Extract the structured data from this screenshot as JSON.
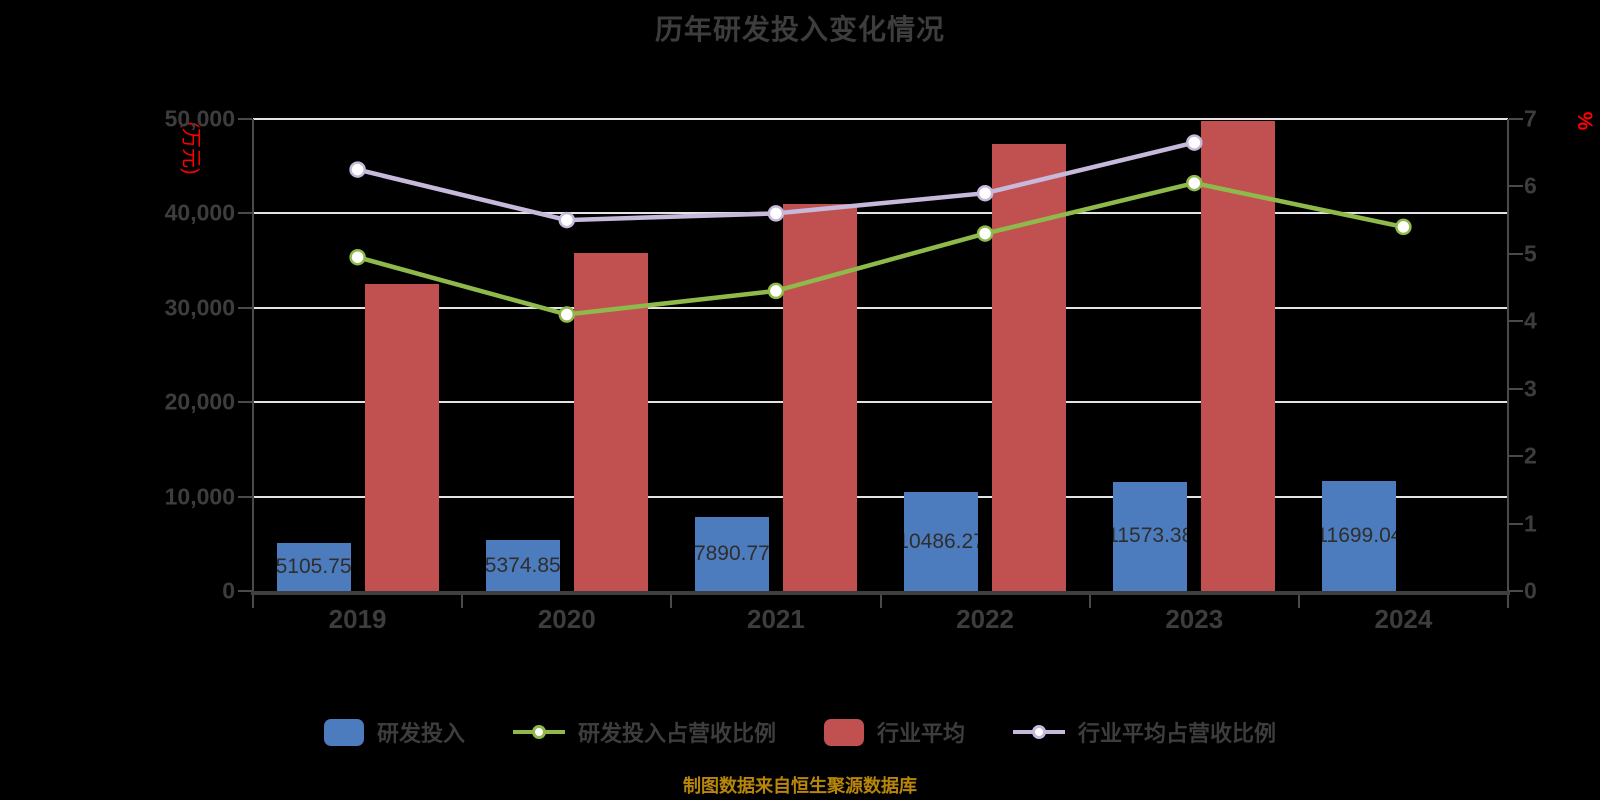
{
  "page": {
    "background_color": "#000000"
  },
  "chart_data": {
    "type": "combo-bar-line",
    "title": "历年研发投入变化情况",
    "source_note": "制图数据来自恒生聚源数据库",
    "categories": [
      "2019",
      "2020",
      "2021",
      "2022",
      "2023",
      "2024"
    ],
    "left_axis": {
      "unit": "(万元)",
      "unit_color": "#FF0000",
      "min": 0,
      "max": 50000,
      "tick_values": [
        0,
        10000,
        20000,
        30000,
        40000,
        50000
      ],
      "tick_labels": [
        "0",
        "10,000",
        "20,000",
        "30,000",
        "40,000",
        "50,000"
      ],
      "grid": true
    },
    "right_axis": {
      "unit": "%",
      "unit_color": "#FF0000",
      "min": 0,
      "max": 7,
      "tick_values": [
        0,
        1,
        2,
        3,
        4,
        5,
        6,
        7
      ],
      "tick_labels": [
        "0",
        "1",
        "2",
        "3",
        "4",
        "5",
        "6",
        "7"
      ],
      "grid": false
    },
    "series": [
      {
        "name": "研发投入",
        "type": "bar",
        "axis": "left",
        "color": "#4C7CBE",
        "values": [
          5105.75,
          5374.85,
          7890.77,
          10486.27,
          11573.38,
          11699.04
        ],
        "value_labels": [
          "5105.75",
          "5374.85",
          "7890.77",
          "10486.27",
          "11573.38",
          "11699.04"
        ]
      },
      {
        "name": "研发投入占营收比例",
        "type": "line",
        "axis": "right",
        "color": "#8FBA4B",
        "values": [
          4.95,
          4.1,
          4.45,
          5.3,
          6.05,
          5.4
        ]
      },
      {
        "name": "行业平均",
        "type": "bar",
        "axis": "left",
        "color": "#C05150",
        "values": [
          32500,
          35800,
          41000,
          47350,
          49800,
          null
        ],
        "value_labels": null
      },
      {
        "name": "行业平均占营收比例",
        "type": "line",
        "axis": "right",
        "color": "#C7B9DB",
        "values": [
          6.25,
          5.5,
          5.6,
          5.9,
          6.65,
          null
        ]
      }
    ],
    "legend_position": "bottom",
    "styles": {
      "grid_color": "#E4E2E2",
      "axis_color": "#4A4A4A",
      "text_color": "#3D3D3D",
      "bar_label_color": "#2E2E2E",
      "footer_color": "#B8860B",
      "marker_fill": "#FFFFFF"
    }
  }
}
